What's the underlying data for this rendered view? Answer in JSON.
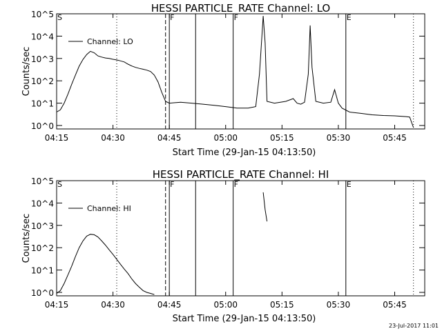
{
  "chart_data": [
    {
      "type": "line",
      "title": "HESSI PARTICLE_RATE Channel: LO",
      "xlabel": "Start Time (29-Jan-15 04:13:50)",
      "ylabel": "Counts/sec",
      "yscale": "log",
      "ylim": [
        0.7,
        100000
      ],
      "xlim": [
        "04:15",
        "05:53"
      ],
      "xticks": [
        "04:15",
        "04:30",
        "04:45",
        "05:00",
        "05:15",
        "05:30",
        "05:45"
      ],
      "yticks": [
        "10^0",
        "10^1",
        "10^2",
        "10^3",
        "10^4",
        "10^5"
      ],
      "legend": {
        "entries": [
          "Channel: LO"
        ],
        "placement": "top-left"
      },
      "markers": [
        {
          "label": "S",
          "time": "04:15",
          "style": "dotted"
        },
        {
          "label": "",
          "time": "04:31",
          "style": "dotted"
        },
        {
          "label": "",
          "time": "04:44",
          "style": "dashed"
        },
        {
          "label": "F",
          "time": "04:45",
          "style": "solid"
        },
        {
          "label": "",
          "time": "04:52",
          "style": "solid"
        },
        {
          "label": "F",
          "time": "05:02",
          "style": "solid"
        },
        {
          "label": "E",
          "time": "05:32",
          "style": "solid"
        },
        {
          "label": "",
          "time": "05:50",
          "style": "dotted"
        }
      ],
      "series": [
        {
          "name": "Channel: LO",
          "segments": [
            [
              [
                "04:15",
                4
              ],
              [
                "04:16",
                5
              ],
              [
                "04:17",
                10
              ],
              [
                "04:18",
                25
              ],
              [
                "04:19",
                70
              ],
              [
                "04:20",
                180
              ],
              [
                "04:21",
                450
              ],
              [
                "04:22",
                900
              ],
              [
                "04:23",
                1500
              ],
              [
                "04:24",
                2100
              ],
              [
                "04:25",
                1800
              ],
              [
                "04:26",
                1300
              ],
              [
                "04:27",
                1150
              ],
              [
                "04:28",
                1050
              ],
              [
                "04:29",
                1000
              ],
              [
                "04:30",
                920
              ],
              [
                "04:31",
                860
              ],
              [
                "04:32",
                780
              ],
              [
                "04:33",
                700
              ],
              [
                "04:34",
                560
              ],
              [
                "04:35",
                460
              ],
              [
                "04:36",
                400
              ],
              [
                "04:37",
                360
              ],
              [
                "04:38",
                330
              ],
              [
                "04:39",
                300
              ],
              [
                "04:40",
                260
              ],
              [
                "04:41",
                180
              ],
              [
                "04:42",
                90
              ],
              [
                "04:43",
                30
              ],
              [
                "04:44",
                12
              ],
              [
                "04:45",
                10
              ],
              [
                "04:48",
                11
              ],
              [
                "04:51",
                10
              ],
              [
                "04:54",
                9
              ],
              [
                "04:57",
                8
              ],
              [
                "05:00",
                7
              ],
              [
                "05:03",
                6
              ],
              [
                "05:06",
                6
              ],
              [
                "05:08",
                7
              ],
              [
                "05:09",
                200
              ],
              [
                "05:10",
                80000
              ],
              [
                "05:10.5",
                5000
              ],
              [
                "05:11",
                12
              ],
              [
                "05:13",
                10
              ],
              [
                "05:16",
                12
              ],
              [
                "05:18",
                16
              ],
              [
                "05:19",
                10
              ],
              [
                "05:20",
                9
              ],
              [
                "05:21",
                11
              ],
              [
                "05:22",
                200
              ],
              [
                "05:22.5",
                30000
              ],
              [
                "05:23",
                400
              ],
              [
                "05:24",
                12
              ],
              [
                "05:26",
                10
              ],
              [
                "05:28",
                11
              ],
              [
                "05:29",
                40
              ],
              [
                "05:30",
                10
              ],
              [
                "05:31",
                6
              ],
              [
                "05:33",
                4
              ],
              [
                "05:36",
                3.5
              ],
              [
                "05:39",
                3
              ],
              [
                "05:42",
                2.8
              ],
              [
                "05:45",
                2.7
              ],
              [
                "05:48",
                2.5
              ],
              [
                "05:49",
                2.4
              ],
              [
                "05:50",
                0.8
              ]
            ]
          ]
        }
      ]
    },
    {
      "type": "line",
      "title": "HESSI PARTICLE_RATE Channel: HI",
      "xlabel": "Start Time (29-Jan-15 04:13:50)",
      "ylabel": "Counts/sec",
      "yscale": "log",
      "ylim": [
        0.7,
        100000
      ],
      "xlim": [
        "04:15",
        "05:53"
      ],
      "xticks": [
        "04:15",
        "04:30",
        "04:45",
        "05:00",
        "05:15",
        "05:30",
        "05:45"
      ],
      "yticks": [
        "10^0",
        "10^1",
        "10^2",
        "10^3",
        "10^4",
        "10^5"
      ],
      "legend": {
        "entries": [
          "Channel: HI"
        ],
        "placement": "top-left"
      },
      "markers": [
        {
          "label": "S",
          "time": "04:15",
          "style": "dotted"
        },
        {
          "label": "",
          "time": "04:31",
          "style": "dotted"
        },
        {
          "label": "",
          "time": "04:44",
          "style": "dashed"
        },
        {
          "label": "F",
          "time": "04:45",
          "style": "solid"
        },
        {
          "label": "",
          "time": "04:52",
          "style": "solid"
        },
        {
          "label": "F",
          "time": "05:02",
          "style": "solid"
        },
        {
          "label": "E",
          "time": "05:32",
          "style": "solid"
        },
        {
          "label": "",
          "time": "05:50",
          "style": "dotted"
        }
      ],
      "series": [
        {
          "name": "Channel: HI",
          "segments": [
            [
              [
                "04:15",
                0.9
              ],
              [
                "04:16",
                1.2
              ],
              [
                "04:17",
                2.5
              ],
              [
                "04:18",
                6
              ],
              [
                "04:19",
                15
              ],
              [
                "04:20",
                40
              ],
              [
                "04:21",
                100
              ],
              [
                "04:22",
                200
              ],
              [
                "04:23",
                330
              ],
              [
                "04:24",
                400
              ],
              [
                "04:25",
                380
              ],
              [
                "04:26",
                300
              ],
              [
                "04:27",
                200
              ],
              [
                "04:28",
                130
              ],
              [
                "04:29",
                80
              ],
              [
                "04:30",
                50
              ],
              [
                "04:31",
                30
              ],
              [
                "04:32",
                18
              ],
              [
                "04:33",
                11
              ],
              [
                "04:34",
                7
              ],
              [
                "04:35",
                4
              ],
              [
                "04:36",
                2.5
              ],
              [
                "04:37",
                1.7
              ],
              [
                "04:38",
                1.2
              ],
              [
                "04:39",
                1.0
              ],
              [
                "04:40",
                0.9
              ],
              [
                "04:41",
                0.8
              ]
            ],
            [
              [
                "05:10",
                30000
              ],
              [
                "05:10.5",
                5000
              ],
              [
                "05:11",
                1500
              ]
            ]
          ]
        }
      ]
    }
  ],
  "footer": {
    "timestamp": "23-Jul-2017 11:01"
  }
}
